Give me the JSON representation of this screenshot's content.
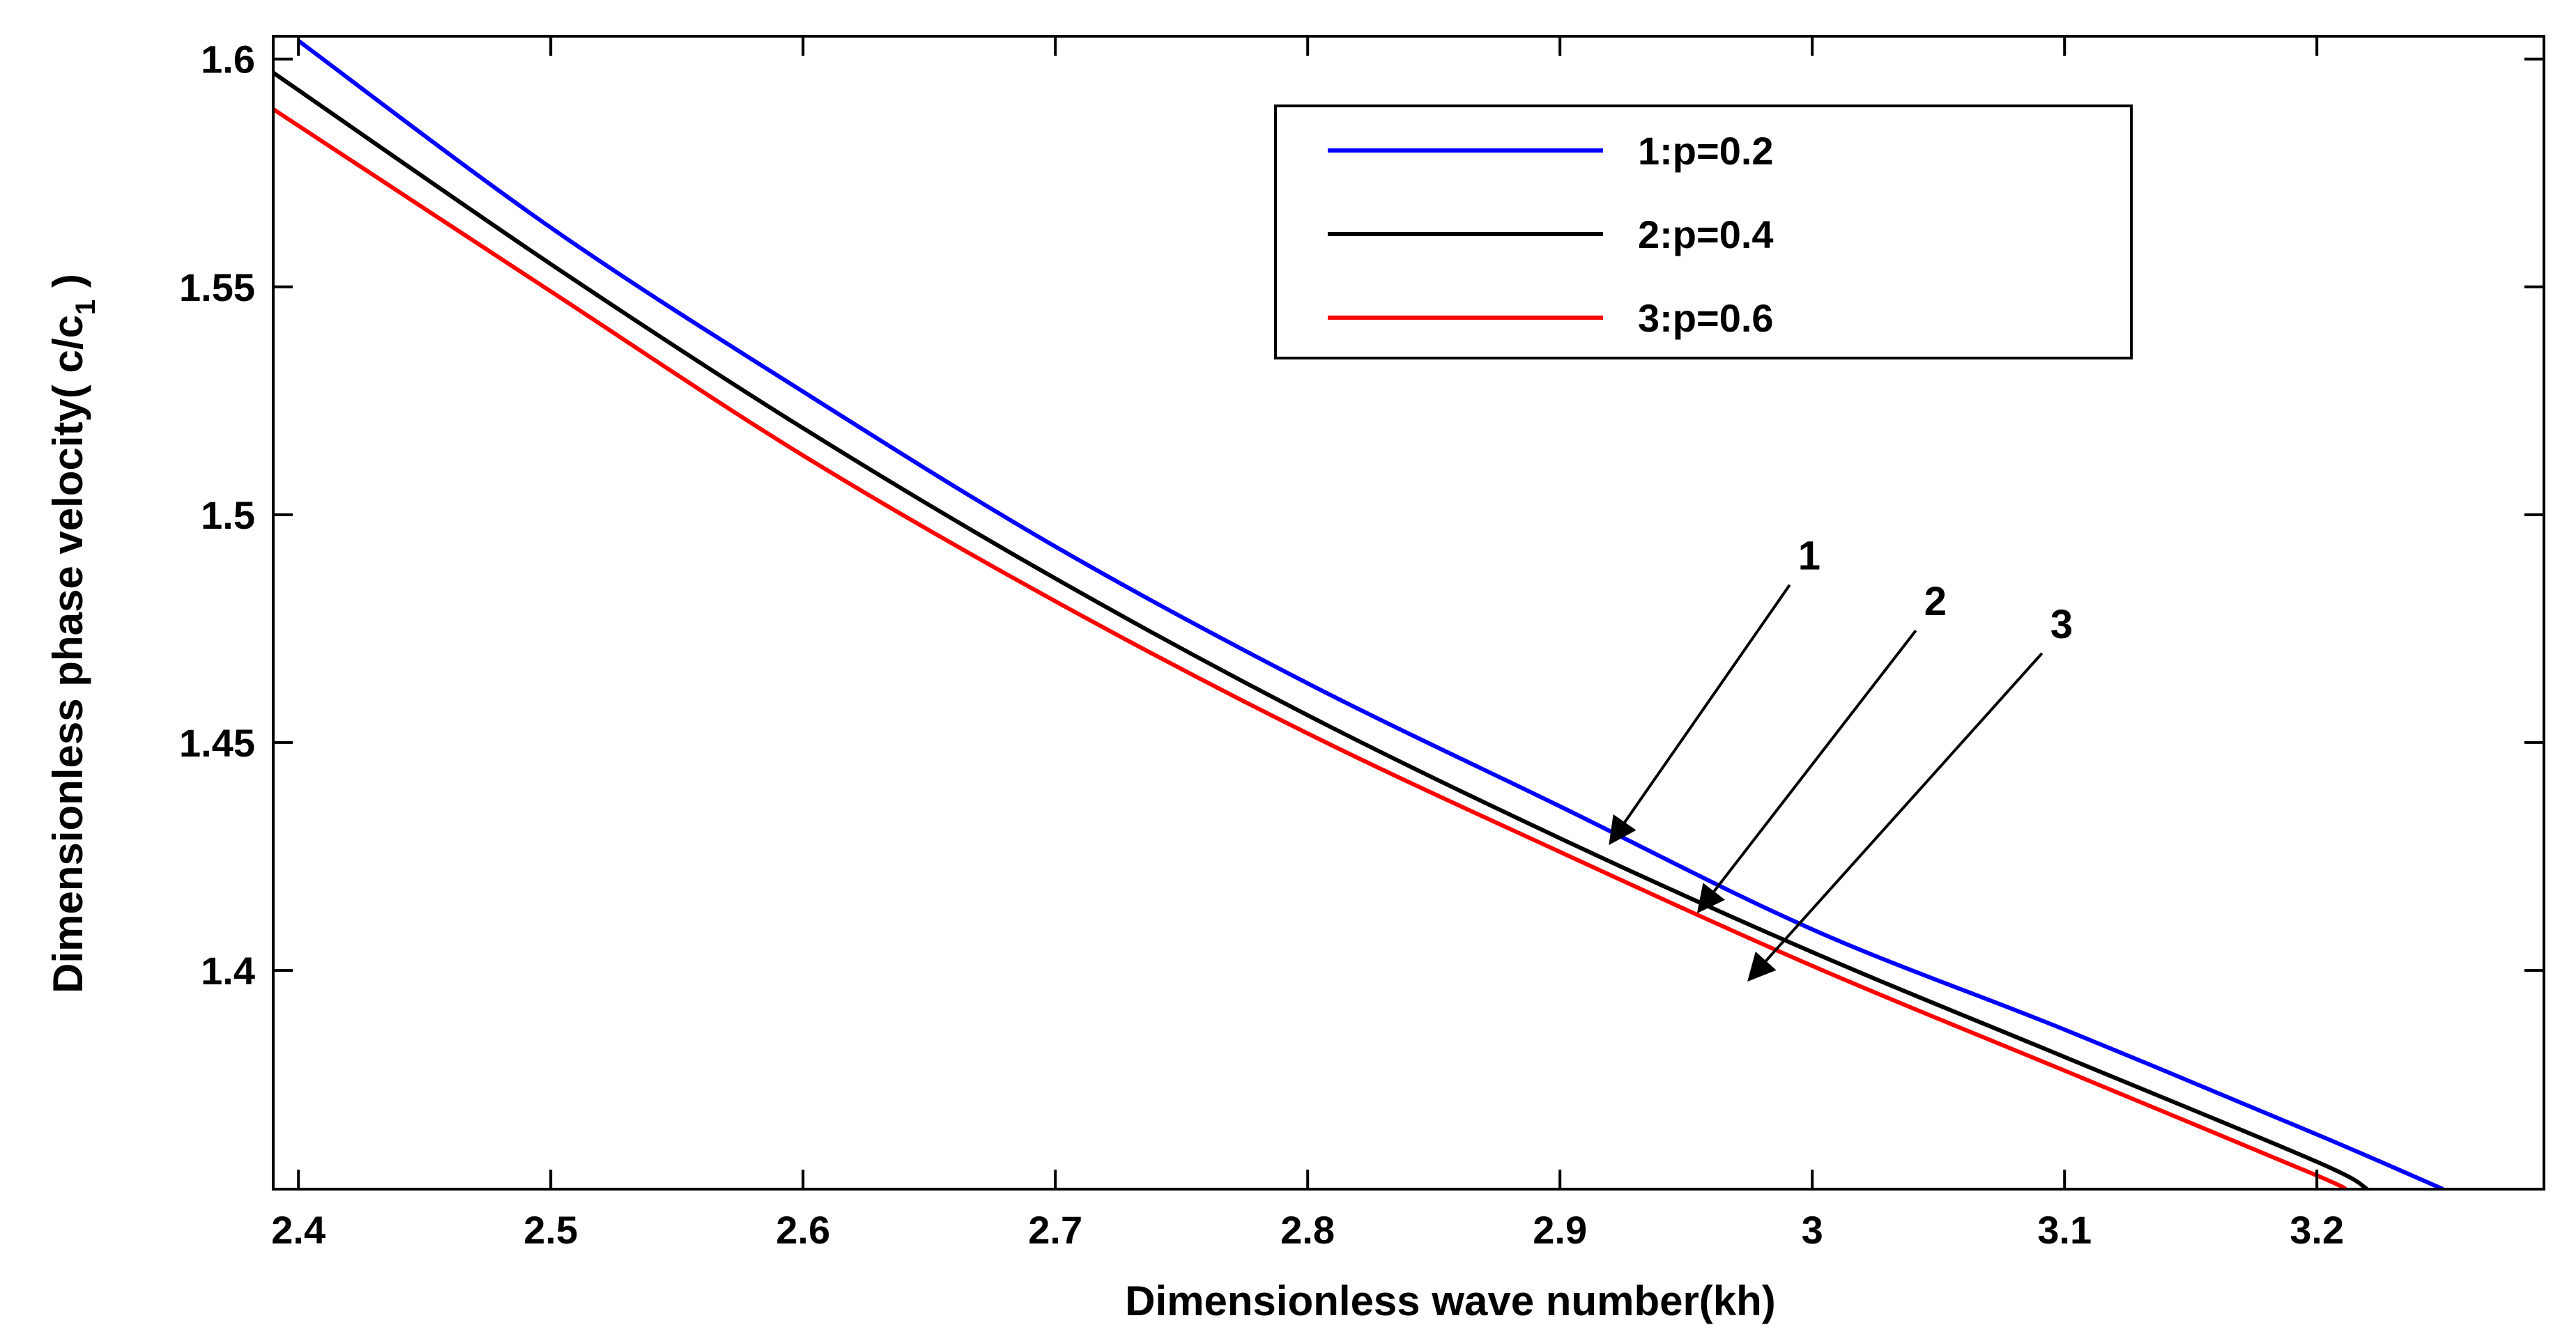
{
  "chart_data": {
    "type": "line",
    "title": "",
    "xlabel": "Dimensionless wave number(kh)",
    "ylabel_prefix": "Dimensionless phase velocity(  c/c",
    "ylabel_sub": "1",
    "ylabel_suffix": " )",
    "xlim": [
      2.39,
      3.29
    ],
    "ylim": [
      1.352,
      1.605
    ],
    "xticks": [
      2.4,
      2.5,
      2.6,
      2.7,
      2.8,
      2.9,
      3.0,
      3.1,
      3.2
    ],
    "xtick_labels": [
      "2.4",
      "2.5",
      "2.6",
      "2.7",
      "2.8",
      "2.9",
      "3",
      "3.1",
      "3.2"
    ],
    "yticks": [
      1.4,
      1.45,
      1.5,
      1.55,
      1.6
    ],
    "ytick_labels": [
      "1.4",
      "1.45",
      "1.5",
      "1.55",
      "1.6"
    ],
    "grid": false,
    "legend_position": "top-right",
    "series": [
      {
        "name": "1:p=0.2",
        "color": "#0000ff",
        "x": [
          2.4,
          2.5,
          2.6,
          2.7,
          2.8,
          2.9,
          3.0,
          3.1,
          3.2,
          3.25
        ],
        "y": [
          1.604,
          1.563,
          1.527,
          1.493,
          1.463,
          1.436,
          1.409,
          1.387,
          1.364,
          1.352
        ]
      },
      {
        "name": "2:p=0.4",
        "color": "#000000",
        "x": [
          2.39,
          2.5,
          2.6,
          2.7,
          2.8,
          2.9,
          3.0,
          3.1,
          3.2,
          3.22
        ],
        "y": [
          1.597,
          1.555,
          1.519,
          1.486,
          1.456,
          1.429,
          1.404,
          1.381,
          1.358,
          1.352
        ]
      },
      {
        "name": "3:p=0.6",
        "color": "#ff0000",
        "x": [
          2.39,
          2.5,
          2.6,
          2.7,
          2.8,
          2.9,
          3.0,
          3.1,
          3.2,
          3.21
        ],
        "y": [
          1.589,
          1.549,
          1.513,
          1.481,
          1.452,
          1.426,
          1.401,
          1.378,
          1.355,
          1.352
        ]
      }
    ],
    "annotations": [
      {
        "label": "1",
        "target_x": 2.92,
        "target_y": 1.428
      },
      {
        "label": "2",
        "target_x": 2.955,
        "target_y": 1.413
      },
      {
        "label": "3",
        "target_x": 2.975,
        "target_y": 1.398
      }
    ]
  }
}
